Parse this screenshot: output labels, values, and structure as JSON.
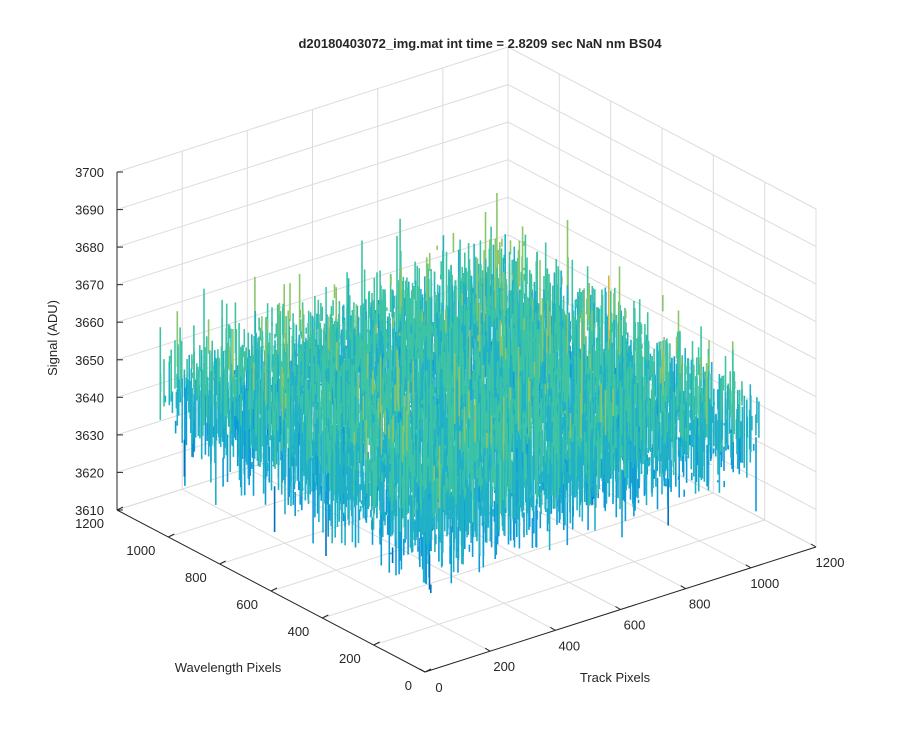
{
  "chart_data": {
    "type": "surface",
    "title": "d20180403072_img.mat int time = 2.8209 sec  NaN nm BS04",
    "xlabel": "Track Pixels",
    "ylabel": "Wavelength Pixels",
    "zlabel": "Signal (ADU)",
    "xlim": [
      0,
      1200
    ],
    "ylim": [
      0,
      1200
    ],
    "zlim": [
      3610,
      3700
    ],
    "x_ticks": [
      0,
      200,
      400,
      600,
      800,
      1000,
      1200
    ],
    "y_ticks": [
      0,
      200,
      400,
      600,
      800,
      1000,
      1200
    ],
    "z_ticks": [
      3610,
      3620,
      3630,
      3640,
      3650,
      3660,
      3670,
      3680,
      3690,
      3700
    ],
    "x_tick_labels": [
      "0",
      "200",
      "400",
      "600",
      "800",
      "1000",
      "1200"
    ],
    "y_tick_labels": [
      "0",
      "200",
      "400",
      "600",
      "800",
      "1000",
      "1200"
    ],
    "z_tick_labels": [
      "3610",
      "3620",
      "3630",
      "3640",
      "3650",
      "3660",
      "3670",
      "3680",
      "3690",
      "3700"
    ],
    "data_extent": {
      "x": [
        0,
        1024
      ],
      "y": [
        0,
        1024
      ]
    },
    "signal_mean": 3648,
    "signal_spread": 8,
    "signal_range_observed": [
      3622,
      3692
    ],
    "grid": true,
    "colormap": [
      "#0072bd",
      "#0e9bd8",
      "#21b1c7",
      "#3ec4a3",
      "#8cc66b",
      "#d8b53b",
      "#f3cd2a"
    ]
  }
}
